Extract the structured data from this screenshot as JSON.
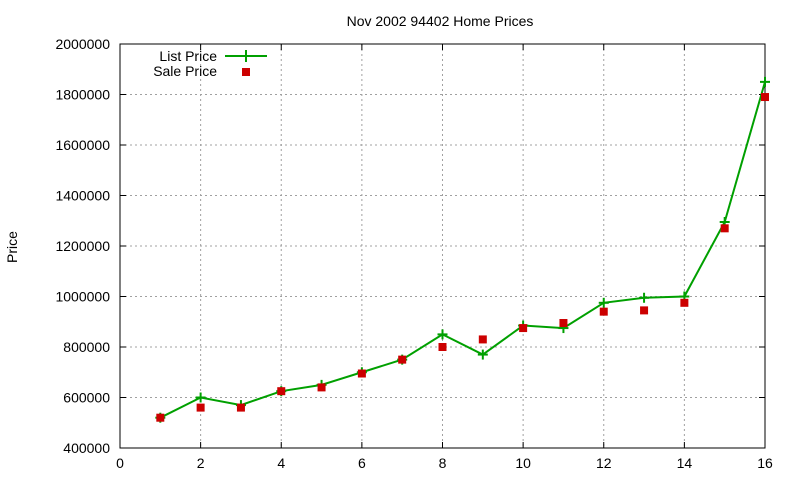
{
  "chart_data": {
    "type": "line",
    "title": "Nov 2002 94402 Home Prices",
    "xlabel": "",
    "ylabel": "Price",
    "xlim": [
      0,
      16
    ],
    "ylim": [
      400000,
      2000000
    ],
    "x_ticks": [
      "0",
      "2",
      "4",
      "6",
      "8",
      "10",
      "12",
      "14",
      "16"
    ],
    "y_ticks": [
      "400000",
      "600000",
      "800000",
      "1000000",
      "1200000",
      "1400000",
      "1600000",
      "1800000",
      "2000000"
    ],
    "grid": true,
    "legend_position": "top-left",
    "series": [
      {
        "name": "List Price",
        "style": "line with cross markers",
        "color": "#00a000",
        "x": [
          1,
          2,
          3,
          4,
          5,
          6,
          7,
          8,
          9,
          10,
          11,
          12,
          13,
          14,
          15,
          16
        ],
        "values": [
          520000,
          600000,
          570000,
          625000,
          650000,
          700000,
          750000,
          850000,
          770000,
          885000,
          875000,
          975000,
          995000,
          1000000,
          1295000,
          1850000
        ]
      },
      {
        "name": "Sale Price",
        "style": "square markers",
        "color": "#cc0000",
        "x": [
          1,
          2,
          3,
          4,
          5,
          6,
          7,
          8,
          9,
          10,
          11,
          12,
          13,
          14,
          15,
          16
        ],
        "values": [
          520000,
          560000,
          560000,
          625000,
          640000,
          695000,
          750000,
          800000,
          830000,
          875000,
          895000,
          940000,
          945000,
          975000,
          1270000,
          1790000
        ]
      }
    ]
  }
}
